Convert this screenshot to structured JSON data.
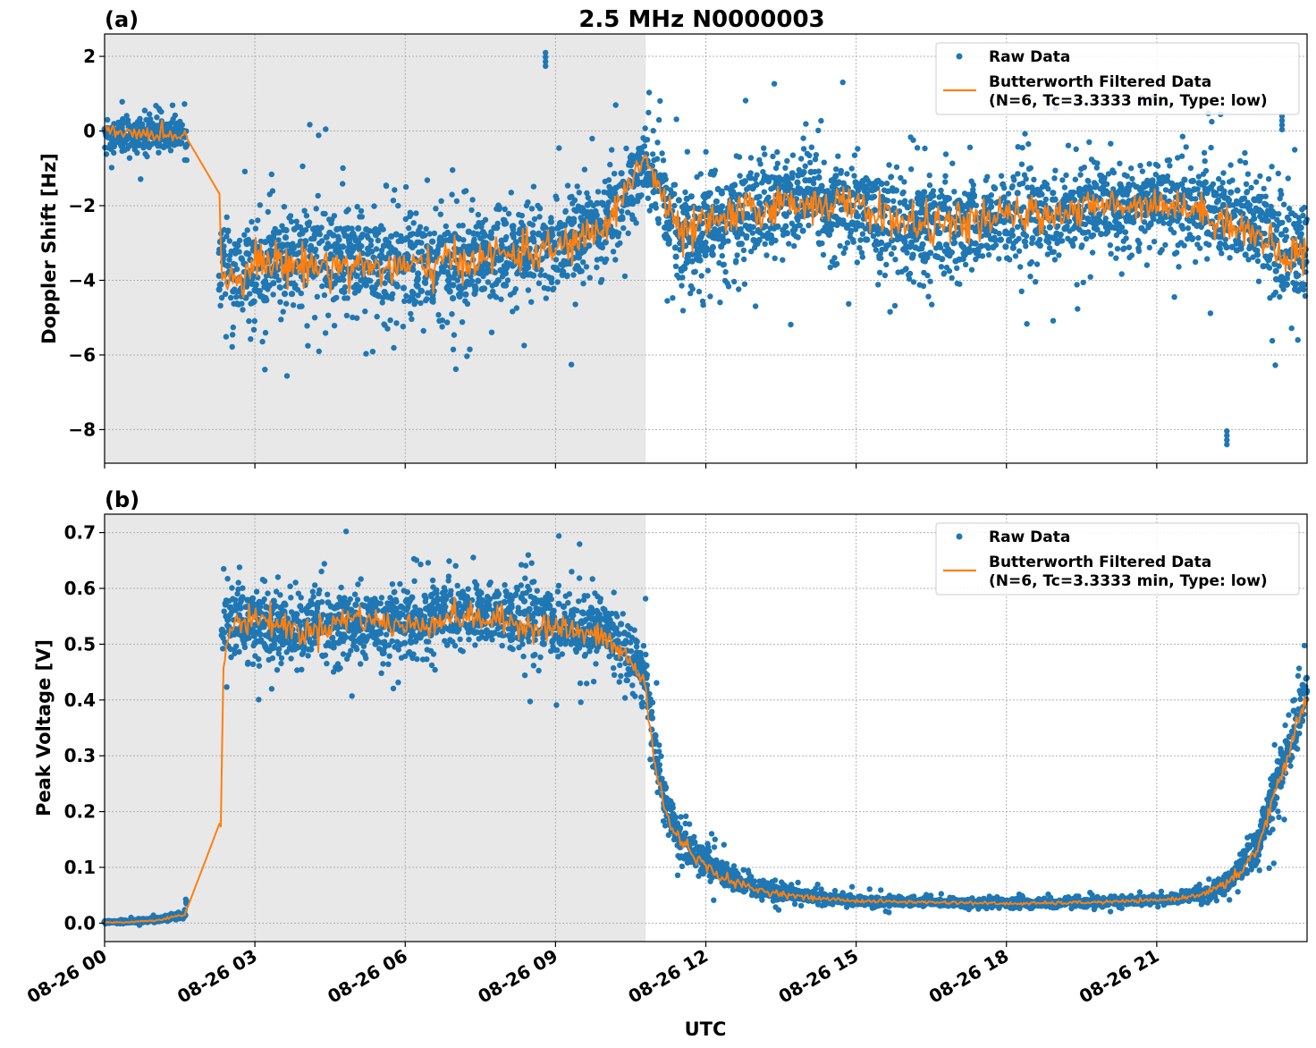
{
  "chart_data": [
    {
      "type": "scatter",
      "panel": "(a)",
      "title": "2.5 MHz N0000003",
      "xlabel": "",
      "ylabel": "Doppler Shift [Hz]",
      "ylim": [
        -8.9,
        2.6
      ],
      "xlim_hours": [
        0,
        24
      ],
      "x_ticks_hours": [
        0,
        3,
        6,
        9,
        12,
        15,
        18,
        21
      ],
      "y_ticks": [
        -8,
        -6,
        -4,
        -2,
        0,
        2
      ],
      "y_tick_labels": [
        "−8",
        "−6",
        "−4",
        "−2",
        "0",
        "2"
      ],
      "grid": true,
      "shaded_region_hours": [
        0,
        10.8
      ],
      "legend": {
        "placement": "top-right",
        "raw_label": "Raw Data",
        "filtered_label_1": "Butterworth Filtered Data",
        "filtered_label_2": "(N=6, Tc=3.3333 min, Type: low)"
      },
      "series": [
        {
          "name": "Raw Data",
          "color": "#1f77b4",
          "kind": "points",
          "envelope_hours": [
            0,
            0.5,
            1.0,
            1.6,
            2.3,
            2.5,
            3,
            4,
            5,
            6,
            7,
            8,
            9,
            10,
            10.5,
            10.8,
            11.2,
            11.5,
            12,
            13,
            14,
            15,
            16,
            17,
            18,
            19,
            20,
            21,
            22,
            23,
            23.5,
            24
          ],
          "envelope_center": [
            -0.1,
            -0.1,
            -0.1,
            -0.1,
            -3.6,
            -3.8,
            -3.7,
            -3.4,
            -3.5,
            -3.6,
            -3.6,
            -3.3,
            -3.2,
            -2.5,
            -1.4,
            -0.8,
            -2.2,
            -2.8,
            -2.5,
            -2.1,
            -1.9,
            -2.0,
            -2.5,
            -2.6,
            -2.3,
            -2.3,
            -2.0,
            -1.9,
            -2.1,
            -2.6,
            -3.2,
            -3.4
          ],
          "envelope_halfwidth": [
            0.6,
            0.5,
            0.5,
            0.5,
            1.2,
            1.5,
            1.5,
            1.5,
            1.5,
            1.5,
            1.5,
            1.4,
            1.4,
            1.3,
            1.2,
            1.1,
            1.6,
            1.6,
            1.5,
            1.5,
            1.4,
            1.4,
            1.5,
            1.5,
            1.4,
            1.3,
            1.2,
            1.2,
            1.3,
            1.5,
            1.6,
            1.6
          ]
        },
        {
          "name": "Butterworth Filtered Data",
          "color": "#ff7f0e",
          "kind": "line",
          "x_hours": [
            0,
            0.5,
            1.0,
            1.6,
            2.3,
            2.33,
            2.5,
            3,
            4,
            5,
            6,
            7,
            8,
            9,
            10,
            10.5,
            10.8,
            11.2,
            11.5,
            12,
            13,
            14,
            15,
            16,
            17,
            18,
            19,
            20,
            21,
            22,
            23,
            23.5,
            24
          ],
          "y": [
            -0.05,
            -0.05,
            -0.1,
            -0.1,
            -1.7,
            -3.8,
            -4.0,
            -3.5,
            -3.6,
            -3.6,
            -3.7,
            -3.5,
            -3.3,
            -3.2,
            -2.6,
            -1.3,
            -0.7,
            -2.0,
            -2.8,
            -2.5,
            -2.1,
            -1.9,
            -2.0,
            -2.5,
            -2.5,
            -2.3,
            -2.2,
            -2.0,
            -1.9,
            -2.2,
            -2.8,
            -3.4,
            -3.2
          ]
        }
      ],
      "notable_outliers": [
        {
          "x_hours": 8.8,
          "y": 2.1
        },
        {
          "x_hours": 22.4,
          "y": -8.4
        },
        {
          "x_hours": 23.5,
          "y": 0.4
        }
      ]
    },
    {
      "type": "scatter",
      "panel": "(b)",
      "title": "",
      "xlabel": "UTC",
      "ylabel": "Peak Voltage [V]",
      "ylim": [
        -0.033,
        0.733
      ],
      "xlim_hours": [
        0,
        24
      ],
      "x_ticks_hours": [
        0,
        3,
        6,
        9,
        12,
        15,
        18,
        21
      ],
      "x_tick_labels": [
        "08-26 00",
        "08-26 03",
        "08-26 06",
        "08-26 09",
        "08-26 12",
        "08-26 15",
        "08-26 18",
        "08-26 21"
      ],
      "y_ticks": [
        0.0,
        0.1,
        0.2,
        0.3,
        0.4,
        0.5,
        0.6,
        0.7
      ],
      "y_tick_labels": [
        "0.0",
        "0.1",
        "0.2",
        "0.3",
        "0.4",
        "0.5",
        "0.6",
        "0.7"
      ],
      "grid": true,
      "shaded_region_hours": [
        0,
        10.8
      ],
      "legend": {
        "placement": "top-right",
        "raw_label": "Raw Data",
        "filtered_label_1": "Butterworth Filtered Data",
        "filtered_label_2": "(N=6, Tc=3.3333 min, Type: low)"
      },
      "series": [
        {
          "name": "Raw Data",
          "color": "#1f77b4",
          "kind": "points",
          "envelope_hours": [
            0,
            0.5,
            1.0,
            1.6,
            2.35,
            2.5,
            3,
            4,
            5,
            6,
            7,
            8,
            9,
            10,
            10.5,
            10.8,
            11.0,
            11.3,
            11.6,
            12,
            12.5,
            13,
            13.5,
            14,
            15,
            16,
            17,
            18,
            19,
            20,
            21,
            21.5,
            22,
            22.5,
            23,
            23.5,
            24
          ],
          "envelope_center": [
            0.002,
            0.003,
            0.006,
            0.014,
            0.54,
            0.55,
            0.54,
            0.53,
            0.54,
            0.54,
            0.56,
            0.55,
            0.54,
            0.52,
            0.49,
            0.44,
            0.3,
            0.18,
            0.14,
            0.11,
            0.08,
            0.06,
            0.055,
            0.048,
            0.041,
            0.038,
            0.037,
            0.036,
            0.036,
            0.038,
            0.042,
            0.046,
            0.055,
            0.08,
            0.14,
            0.28,
            0.42
          ],
          "envelope_halfwidth": [
            0.003,
            0.003,
            0.004,
            0.008,
            0.06,
            0.07,
            0.07,
            0.07,
            0.07,
            0.07,
            0.07,
            0.07,
            0.07,
            0.06,
            0.06,
            0.06,
            0.06,
            0.04,
            0.035,
            0.03,
            0.025,
            0.02,
            0.015,
            0.012,
            0.01,
            0.008,
            0.008,
            0.008,
            0.008,
            0.008,
            0.009,
            0.01,
            0.015,
            0.03,
            0.04,
            0.06,
            0.06
          ]
        },
        {
          "name": "Butterworth Filtered Data",
          "color": "#ff7f0e",
          "kind": "line",
          "x_hours": [
            0,
            0.5,
            1.0,
            1.6,
            2.3,
            2.33,
            2.36,
            2.5,
            3,
            4,
            5,
            6,
            7,
            8,
            9,
            10,
            10.5,
            10.8,
            11.0,
            11.3,
            11.6,
            12,
            12.5,
            13,
            13.5,
            14,
            15,
            16,
            17,
            18,
            19,
            20,
            21,
            21.5,
            22,
            22.5,
            23,
            23.5,
            24
          ],
          "y": [
            0.001,
            0.002,
            0.005,
            0.015,
            0.18,
            0.17,
            0.45,
            0.53,
            0.55,
            0.52,
            0.55,
            0.53,
            0.55,
            0.54,
            0.53,
            0.51,
            0.47,
            0.42,
            0.27,
            0.17,
            0.14,
            0.1,
            0.075,
            0.06,
            0.053,
            0.046,
            0.04,
            0.038,
            0.037,
            0.035,
            0.036,
            0.038,
            0.041,
            0.045,
            0.055,
            0.075,
            0.13,
            0.27,
            0.41
          ]
        }
      ]
    }
  ]
}
